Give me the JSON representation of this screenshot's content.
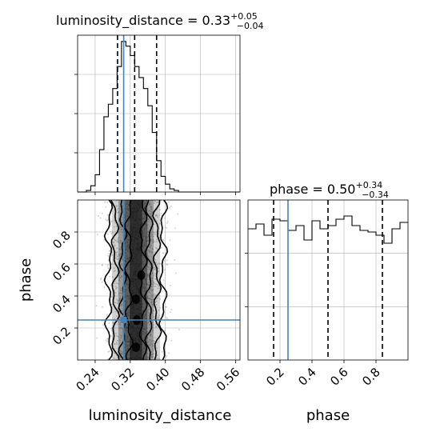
{
  "chart_data": [
    {
      "type": "histogram",
      "panel": "top-left",
      "title": "luminosity_distance = 0.33",
      "title_plus": "+0.05",
      "title_minus": "−0.04",
      "x": [
        0.2,
        0.21,
        0.22,
        0.23,
        0.24,
        0.25,
        0.26,
        0.27,
        0.28,
        0.29,
        0.3,
        0.31,
        0.32,
        0.33,
        0.34,
        0.35,
        0.36,
        0.37,
        0.38,
        0.39,
        0.4,
        0.41,
        0.42,
        0.43,
        0.44,
        0.45,
        0.46,
        0.47,
        0.48,
        0.49,
        0.5,
        0.51,
        0.52,
        0.53,
        0.54,
        0.55,
        0.56,
        0.57
      ],
      "values": [
        0.0,
        0.0,
        0.01,
        0.04,
        0.11,
        0.27,
        0.48,
        0.56,
        0.66,
        0.8,
        0.96,
        0.93,
        0.87,
        0.8,
        0.73,
        0.66,
        0.55,
        0.38,
        0.2,
        0.1,
        0.05,
        0.02,
        0.01,
        0.0,
        0.0,
        0.0,
        0.0,
        0.0,
        0.0,
        0.0,
        0.0,
        0.0,
        0.0,
        0.0,
        0.0,
        0.0,
        0.0,
        0.0
      ],
      "quantiles": [
        0.291,
        0.33,
        0.38
      ],
      "truth": 0.305,
      "xlim": [
        0.2,
        0.57
      ],
      "ylim": [
        0,
        1.0
      ],
      "grid": true
    },
    {
      "type": "histogram",
      "panel": "bottom-right",
      "title": "phase = 0.50",
      "title_plus": "+0.34",
      "title_minus": "−0.34",
      "x": [
        0.0,
        0.05,
        0.1,
        0.15,
        0.2,
        0.25,
        0.3,
        0.35,
        0.4,
        0.45,
        0.5,
        0.55,
        0.6,
        0.65,
        0.7,
        0.75,
        0.8,
        0.85,
        0.9,
        0.95,
        1.0
      ],
      "values": [
        0.82,
        0.85,
        0.78,
        0.88,
        0.87,
        0.81,
        0.84,
        0.75,
        0.87,
        0.82,
        0.84,
        0.88,
        0.9,
        0.84,
        0.81,
        0.8,
        0.78,
        0.73,
        0.82,
        0.86,
        0.84
      ],
      "quantiles": [
        0.16,
        0.5,
        0.84
      ],
      "truth": 0.25,
      "xlim": [
        0.0,
        1.0
      ],
      "xticks": [
        "0.2",
        "0.4",
        "0.6",
        "0.8"
      ],
      "xlabel": "phase",
      "ylim": [
        0,
        1.0
      ],
      "grid": true
    },
    {
      "type": "scatter",
      "panel": "bottom-left",
      "xlabel": "luminosity_distance",
      "ylabel": "phase",
      "xlim": [
        0.2,
        0.57
      ],
      "ylim": [
        0.0,
        1.0
      ],
      "xticks": [
        "0.24",
        "0.32",
        "0.40",
        "0.48",
        "0.56"
      ],
      "yticks": [
        "0.2",
        "0.4",
        "0.6",
        "0.8"
      ],
      "truth": {
        "x": 0.305,
        "y": 0.25
      },
      "grid": true,
      "contours": 4
    }
  ],
  "colors": {
    "truth": "#4682b4",
    "hist": "#000000",
    "grid": "#b0b0b0",
    "scatter": "#a0a0a0"
  }
}
